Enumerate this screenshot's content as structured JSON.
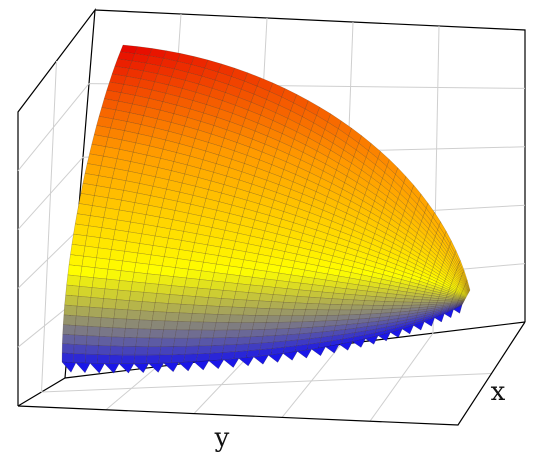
{
  "chart_data": {
    "type": "surface3d",
    "title": "",
    "xlabel": "x",
    "ylabel": "y",
    "zlabel": "",
    "tick_labels_visible": false,
    "grid": true,
    "box": true,
    "colormap": [
      "#1a16e8",
      "#ffff00",
      "#ff9a00",
      "#e60000"
    ],
    "mesh_lines": true,
    "surface_shape": "bowl-shaped surface over a quarter-disc domain, highest along the back-left edge and falling to the front"
  }
}
